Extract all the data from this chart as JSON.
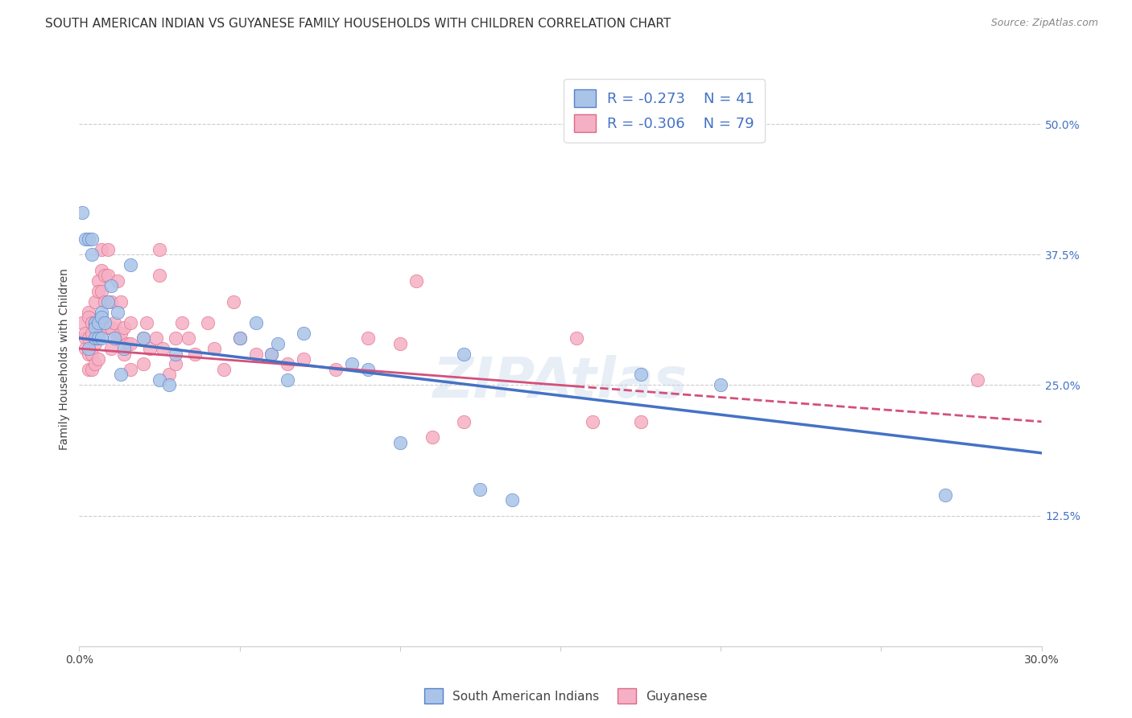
{
  "title": "SOUTH AMERICAN INDIAN VS GUYANESE FAMILY HOUSEHOLDS WITH CHILDREN CORRELATION CHART",
  "source": "Source: ZipAtlas.com",
  "ylabel": "Family Households with Children",
  "xlim": [
    0.0,
    0.3
  ],
  "ylim": [
    0.0,
    0.55
  ],
  "xticks": [
    0.0,
    0.05,
    0.1,
    0.15,
    0.2,
    0.25,
    0.3
  ],
  "xticklabels": [
    "0.0%",
    "",
    "",
    "",
    "",
    "",
    "30.0%"
  ],
  "ytick_positions": [
    0.0,
    0.125,
    0.25,
    0.375,
    0.5
  ],
  "ytick_labels_right": [
    "",
    "12.5%",
    "25.0%",
    "37.5%",
    "50.0%"
  ],
  "legend_r1": "-0.273",
  "legend_n1": "41",
  "legend_r2": "-0.306",
  "legend_n2": "79",
  "color_blue_fill": "#aac4e8",
  "color_pink_fill": "#f5b0c5",
  "color_blue_edge": "#5580c8",
  "color_pink_edge": "#e06882",
  "color_blue_line": "#4472c4",
  "color_pink_line": "#d4507a",
  "color_legend_text": "#4472c4",
  "color_grid": "#cccccc",
  "watermark": "ZIPAtlas",
  "background_color": "#ffffff",
  "title_fontsize": 11,
  "blue_line_x0": 0.0,
  "blue_line_y0": 0.295,
  "blue_line_x1": 0.3,
  "blue_line_y1": 0.185,
  "pink_line_x0": 0.0,
  "pink_line_y0": 0.285,
  "pink_line_x1": 0.3,
  "pink_line_y1": 0.215,
  "pink_line_solid_end": 0.155,
  "blue_points_x": [
    0.001,
    0.002,
    0.003,
    0.003,
    0.004,
    0.004,
    0.005,
    0.005,
    0.005,
    0.006,
    0.006,
    0.007,
    0.007,
    0.007,
    0.008,
    0.009,
    0.01,
    0.011,
    0.012,
    0.013,
    0.014,
    0.016,
    0.02,
    0.025,
    0.028,
    0.03,
    0.05,
    0.055,
    0.06,
    0.062,
    0.065,
    0.07,
    0.085,
    0.09,
    0.1,
    0.12,
    0.125,
    0.135,
    0.175,
    0.2,
    0.27
  ],
  "blue_points_y": [
    0.415,
    0.39,
    0.39,
    0.285,
    0.39,
    0.375,
    0.31,
    0.305,
    0.295,
    0.31,
    0.295,
    0.32,
    0.315,
    0.295,
    0.31,
    0.33,
    0.345,
    0.295,
    0.32,
    0.26,
    0.285,
    0.365,
    0.295,
    0.255,
    0.25,
    0.28,
    0.295,
    0.31,
    0.28,
    0.29,
    0.255,
    0.3,
    0.27,
    0.265,
    0.195,
    0.28,
    0.15,
    0.14,
    0.26,
    0.25,
    0.145
  ],
  "pink_points_x": [
    0.001,
    0.002,
    0.002,
    0.002,
    0.003,
    0.003,
    0.003,
    0.003,
    0.003,
    0.004,
    0.004,
    0.004,
    0.004,
    0.005,
    0.005,
    0.005,
    0.005,
    0.006,
    0.006,
    0.006,
    0.006,
    0.006,
    0.007,
    0.007,
    0.007,
    0.007,
    0.008,
    0.008,
    0.008,
    0.009,
    0.009,
    0.009,
    0.01,
    0.01,
    0.01,
    0.011,
    0.012,
    0.012,
    0.013,
    0.013,
    0.014,
    0.014,
    0.015,
    0.016,
    0.016,
    0.016,
    0.02,
    0.02,
    0.021,
    0.022,
    0.024,
    0.025,
    0.025,
    0.026,
    0.028,
    0.03,
    0.03,
    0.032,
    0.034,
    0.036,
    0.04,
    0.042,
    0.045,
    0.048,
    0.05,
    0.055,
    0.06,
    0.065,
    0.07,
    0.08,
    0.09,
    0.1,
    0.105,
    0.11,
    0.12,
    0.155,
    0.16,
    0.175,
    0.28
  ],
  "pink_points_y": [
    0.31,
    0.295,
    0.285,
    0.3,
    0.32,
    0.315,
    0.295,
    0.28,
    0.265,
    0.31,
    0.3,
    0.28,
    0.265,
    0.33,
    0.31,
    0.29,
    0.27,
    0.35,
    0.34,
    0.31,
    0.295,
    0.275,
    0.38,
    0.36,
    0.34,
    0.31,
    0.355,
    0.33,
    0.305,
    0.38,
    0.355,
    0.305,
    0.33,
    0.305,
    0.285,
    0.31,
    0.35,
    0.295,
    0.33,
    0.3,
    0.305,
    0.28,
    0.29,
    0.31,
    0.29,
    0.265,
    0.295,
    0.27,
    0.31,
    0.285,
    0.295,
    0.38,
    0.355,
    0.285,
    0.26,
    0.295,
    0.27,
    0.31,
    0.295,
    0.28,
    0.31,
    0.285,
    0.265,
    0.33,
    0.295,
    0.28,
    0.28,
    0.27,
    0.275,
    0.265,
    0.295,
    0.29,
    0.35,
    0.2,
    0.215,
    0.295,
    0.215,
    0.215,
    0.255
  ]
}
